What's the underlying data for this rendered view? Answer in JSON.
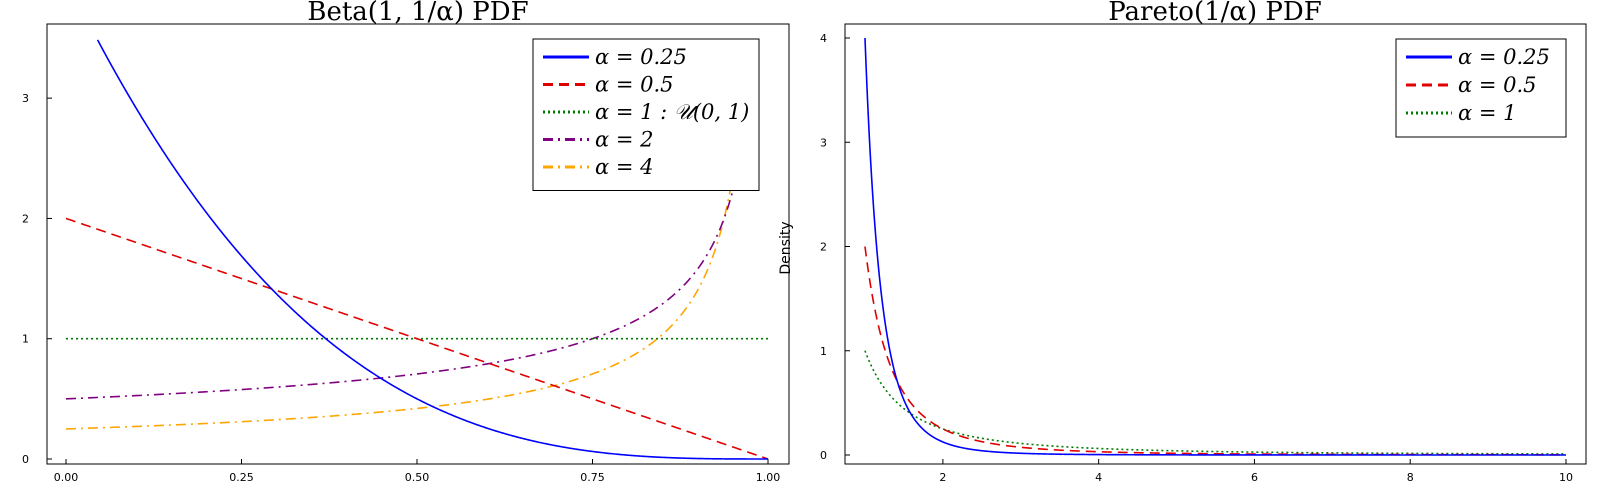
{
  "chart_data": [
    {
      "type": "line",
      "title": "Beta(1, 1/α) PDF",
      "xlabel": "",
      "ylabel": "",
      "xlim": [
        0,
        1
      ],
      "ylim": [
        0,
        3.5
      ],
      "xticks": [
        "0.00",
        "0.25",
        "0.50",
        "0.75",
        "1.00"
      ],
      "yticks": [
        "0",
        "1",
        "2",
        "3"
      ],
      "legend_position": "top-right",
      "series": [
        {
          "name": "α = 0.25",
          "alpha": 0.25,
          "color": "#0000ff",
          "style": "solid"
        },
        {
          "name": "α = 0.5",
          "alpha": 0.5,
          "color": "#e00000",
          "style": "dash"
        },
        {
          "name": "α = 1 : 𝒰(0, 1)",
          "alpha": 1,
          "color": "#007a00",
          "style": "dot"
        },
        {
          "name": "α = 2",
          "alpha": 2,
          "color": "#800080",
          "style": "dashdot"
        },
        {
          "name": "α = 4",
          "alpha": 4,
          "color": "#ffa500",
          "style": "dashdot"
        }
      ]
    },
    {
      "type": "line",
      "title": "Pareto(1/α) PDF",
      "xlabel": "",
      "ylabel": "Density",
      "xlim": [
        1,
        10
      ],
      "ylim": [
        0,
        4
      ],
      "xticks": [
        "2",
        "4",
        "6",
        "8",
        "10"
      ],
      "yticks": [
        "0",
        "1",
        "2",
        "3",
        "4"
      ],
      "legend_position": "top-right",
      "series": [
        {
          "name": "α = 0.25",
          "alpha": 0.25,
          "color": "#0000ff",
          "style": "solid"
        },
        {
          "name": "α = 0.5",
          "alpha": 0.5,
          "color": "#e00000",
          "style": "dash"
        },
        {
          "name": "α = 1",
          "alpha": 1,
          "color": "#007a00",
          "style": "dot"
        }
      ]
    }
  ]
}
